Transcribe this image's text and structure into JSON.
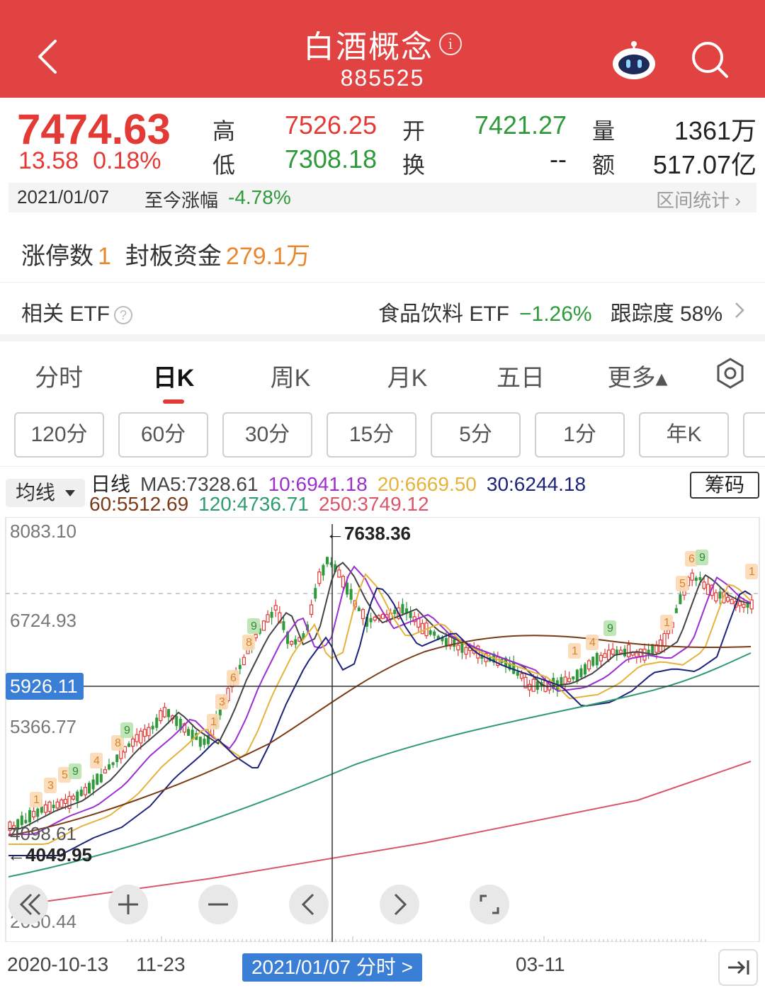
{
  "header": {
    "title": "白酒概念",
    "info_glyph": "i",
    "code": "885525"
  },
  "quote": {
    "price": "7474.63",
    "change": "13.58",
    "change_pct": "0.18%",
    "high_label": "高",
    "high": "7526.25",
    "low_label": "低",
    "low": "7308.18",
    "open_label": "开",
    "open": "7421.27",
    "turnover_label": "换",
    "turnover": "--",
    "volume_label": "量",
    "volume": "1361万",
    "amount_label": "额",
    "amount": "517.07亿"
  },
  "range": {
    "date": "2021/01/07",
    "label": "至今涨幅",
    "value": "-4.78%",
    "stat_link": "区间统计"
  },
  "limit": {
    "count_label": "涨停数",
    "count": "1",
    "funds_label": "封板资金",
    "funds": "279.1万"
  },
  "etf": {
    "label": "相关 ETF",
    "help_glyph": "?",
    "name": "食品饮料 ETF",
    "change": "−1.26%",
    "track_label": "跟踪度",
    "track": "58%"
  },
  "tabs": [
    {
      "label": "分时"
    },
    {
      "label": "日K"
    },
    {
      "label": "周K"
    },
    {
      "label": "月K"
    },
    {
      "label": "五日"
    },
    {
      "label": "更多▴"
    }
  ],
  "intervals": [
    "120分",
    "60分",
    "30分",
    "15分",
    "5分",
    "1分",
    "年K"
  ],
  "ma": {
    "selector": "均线",
    "line_label": "日线",
    "ma5": "MA5:7328.61",
    "ma10": "10:6941.18",
    "ma20": "20:6669.50",
    "ma30": "30:6244.18",
    "ma60": "60:5512.69",
    "ma120": "120:4736.71",
    "ma250": "250:3749.12",
    "chip_button": "筹码",
    "colors": {
      "ma5": "#444444",
      "ma10": "#9b2fcf",
      "ma20": "#e5b33b",
      "ma30": "#1d237a",
      "ma60": "#7a3a16",
      "ma120": "#2f9b6e",
      "ma250": "#d9566a"
    }
  },
  "chart_data": {
    "type": "candlestick",
    "y_labels": [
      "8083.10",
      "6724.93",
      "5366.77",
      "2650.44"
    ],
    "crosshair_value": "5926.11",
    "high_marker": "←7638.36",
    "low_marker": "←4049.95",
    "close_overlay": "4098.61",
    "ylim": [
      2650.44,
      8083.1
    ],
    "x_labels": [
      "2020-10-13",
      "11-23",
      "03-11"
    ],
    "crosshair_date": "2021/01/07 分时 >",
    "candle_up_color": "#e33a36",
    "candle_down_color": "#2e9a3a"
  },
  "controls": [
    "fast-back",
    "zoom-in",
    "zoom-out",
    "prev",
    "next",
    "fullscreen"
  ],
  "colors": {
    "brand": "#e04342",
    "up": "#e33a36",
    "down": "#2e9a3a",
    "accent_orange": "#e8872c",
    "pill_blue": "#3b7ed6"
  }
}
